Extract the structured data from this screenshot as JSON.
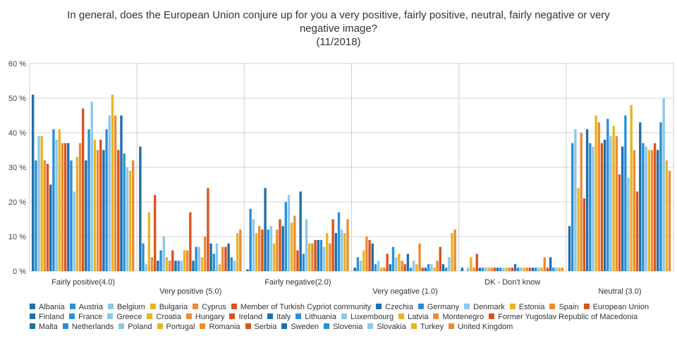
{
  "chart_data": {
    "type": "bar",
    "title": [
      "In general, does the European Union conjure up for you a very positive, fairly positive, neutral, fairly negative or very",
      "negative image?",
      "(11/2018)"
    ],
    "categories": [
      {
        "line1": "Fairly positive(4.0)",
        "line2": ""
      },
      {
        "line1": "",
        "line2": "Very positive  (5.0)"
      },
      {
        "line1": "Fairly negative(2.0)",
        "line2": ""
      },
      {
        "line1": "",
        "line2": "Very negative  (1.0)"
      },
      {
        "line1": "DK - Don't know",
        "line2": ""
      },
      {
        "line1": "",
        "line2": "Neutral        (3.0)"
      }
    ],
    "yticks": [
      "0 %",
      "10 %",
      "20 %",
      "30 %",
      "40 %",
      "50 %",
      "60 %"
    ],
    "ylim": [
      0,
      60
    ],
    "grid": true,
    "legend_position": "bottom",
    "series": [
      {
        "name": "Albania",
        "color": "#1f6fa8",
        "values": [
          51,
          36,
          0.5,
          1,
          1,
          13
        ]
      },
      {
        "name": "Austria",
        "color": "#2a8fd9",
        "values": [
          32,
          8,
          18,
          4,
          0,
          37
        ]
      },
      {
        "name": "Belgium",
        "color": "#8cc8ec",
        "values": [
          39,
          2,
          15,
          3,
          1,
          41
        ]
      },
      {
        "name": "Bulgaria",
        "color": "#e8b424",
        "values": [
          39,
          17,
          11,
          6,
          4,
          24
        ]
      },
      {
        "name": "Cyprus",
        "color": "#ee8a34",
        "values": [
          32,
          4,
          13,
          10,
          1,
          40
        ]
      },
      {
        "name": "Member of Turkish Cypriot community",
        "color": "#d9541e",
        "values": [
          31,
          22,
          12,
          9,
          5,
          21
        ]
      },
      {
        "name": "Czechia",
        "color": "#1f6fa8",
        "values": [
          25,
          3,
          24,
          8,
          1,
          41
        ]
      },
      {
        "name": "Germany",
        "color": "#2a8fd9",
        "values": [
          41,
          6,
          12,
          2,
          1,
          37
        ]
      },
      {
        "name": "Denmark",
        "color": "#8cc8ec",
        "values": [
          38,
          10,
          13,
          3,
          1,
          36
        ]
      },
      {
        "name": "Estonia",
        "color": "#e8b424",
        "values": [
          41,
          4,
          8,
          1,
          1,
          45
        ]
      },
      {
        "name": "Spain",
        "color": "#ee8a34",
        "values": [
          37,
          3,
          12,
          1,
          1,
          43
        ]
      },
      {
        "name": "European Union",
        "color": "#d9541e",
        "values": [
          37,
          6,
          15,
          5,
          1,
          37
        ]
      },
      {
        "name": "Finland",
        "color": "#1f6fa8",
        "values": [
          37,
          3,
          13,
          2,
          1,
          38
        ]
      },
      {
        "name": "France",
        "color": "#2a8fd9",
        "values": [
          32,
          3,
          20,
          7,
          1,
          44
        ]
      },
      {
        "name": "Greece",
        "color": "#8cc8ec",
        "values": [
          23,
          3,
          22,
          4,
          1,
          39
        ]
      },
      {
        "name": "Croatia",
        "color": "#e8b424",
        "values": [
          33,
          6,
          14,
          5,
          1,
          42
        ]
      },
      {
        "name": "Hungary",
        "color": "#ee8a34",
        "values": [
          37,
          6,
          16,
          3,
          1,
          39
        ]
      },
      {
        "name": "Ireland",
        "color": "#d9541e",
        "values": [
          47,
          17,
          6,
          2,
          1,
          28
        ]
      },
      {
        "name": "Italy",
        "color": "#1f6fa8",
        "values": [
          32,
          3,
          23,
          5,
          2,
          36
        ]
      },
      {
        "name": "Lithuania",
        "color": "#2a8fd9",
        "values": [
          41,
          7,
          5,
          1,
          1,
          45
        ]
      },
      {
        "name": "Luxembourg",
        "color": "#8cc8ec",
        "values": [
          49,
          7,
          15,
          3,
          1,
          27
        ]
      },
      {
        "name": "Latvia",
        "color": "#e8b424",
        "values": [
          38,
          4,
          8,
          2,
          1,
          48
        ]
      },
      {
        "name": "Montenegro",
        "color": "#ee8a34",
        "values": [
          35,
          10,
          8,
          8,
          1,
          35
        ]
      },
      {
        "name": "Former Yugoslav Republic of Macedonia",
        "color": "#d9541e",
        "values": [
          38,
          24,
          9,
          1,
          1,
          23
        ]
      },
      {
        "name": "Malta",
        "color": "#1f6fa8",
        "values": [
          35,
          8,
          9,
          1,
          1,
          43
        ]
      },
      {
        "name": "Netherlands",
        "color": "#2a8fd9",
        "values": [
          41,
          5,
          9,
          2,
          1,
          37
        ]
      },
      {
        "name": "Poland",
        "color": "#8cc8ec",
        "values": [
          45,
          8,
          7,
          2,
          1,
          36
        ]
      },
      {
        "name": "Portugal",
        "color": "#e8b424",
        "values": [
          51,
          2,
          11,
          1,
          1,
          35
        ]
      },
      {
        "name": "Romania",
        "color": "#ee8a34",
        "values": [
          45,
          7,
          8,
          3,
          4,
          35
        ]
      },
      {
        "name": "Serbia",
        "color": "#d9541e",
        "values": [
          35,
          7,
          15,
          7,
          1,
          37
        ]
      },
      {
        "name": "Sweden",
        "color": "#1f6fa8",
        "values": [
          45,
          8,
          11,
          2,
          4,
          35
        ]
      },
      {
        "name": "Slovenia",
        "color": "#2a8fd9",
        "values": [
          34,
          4,
          17,
          1,
          1,
          43
        ]
      },
      {
        "name": "Slovakia",
        "color": "#8cc8ec",
        "values": [
          30,
          3,
          12,
          4,
          1,
          50
        ]
      },
      {
        "name": "Turkey",
        "color": "#e8b424",
        "values": [
          29,
          11,
          11,
          11,
          1,
          32
        ]
      },
      {
        "name": "United Kingdom",
        "color": "#ee8a34",
        "values": [
          32,
          12,
          15,
          12,
          1,
          29
        ]
      }
    ]
  }
}
